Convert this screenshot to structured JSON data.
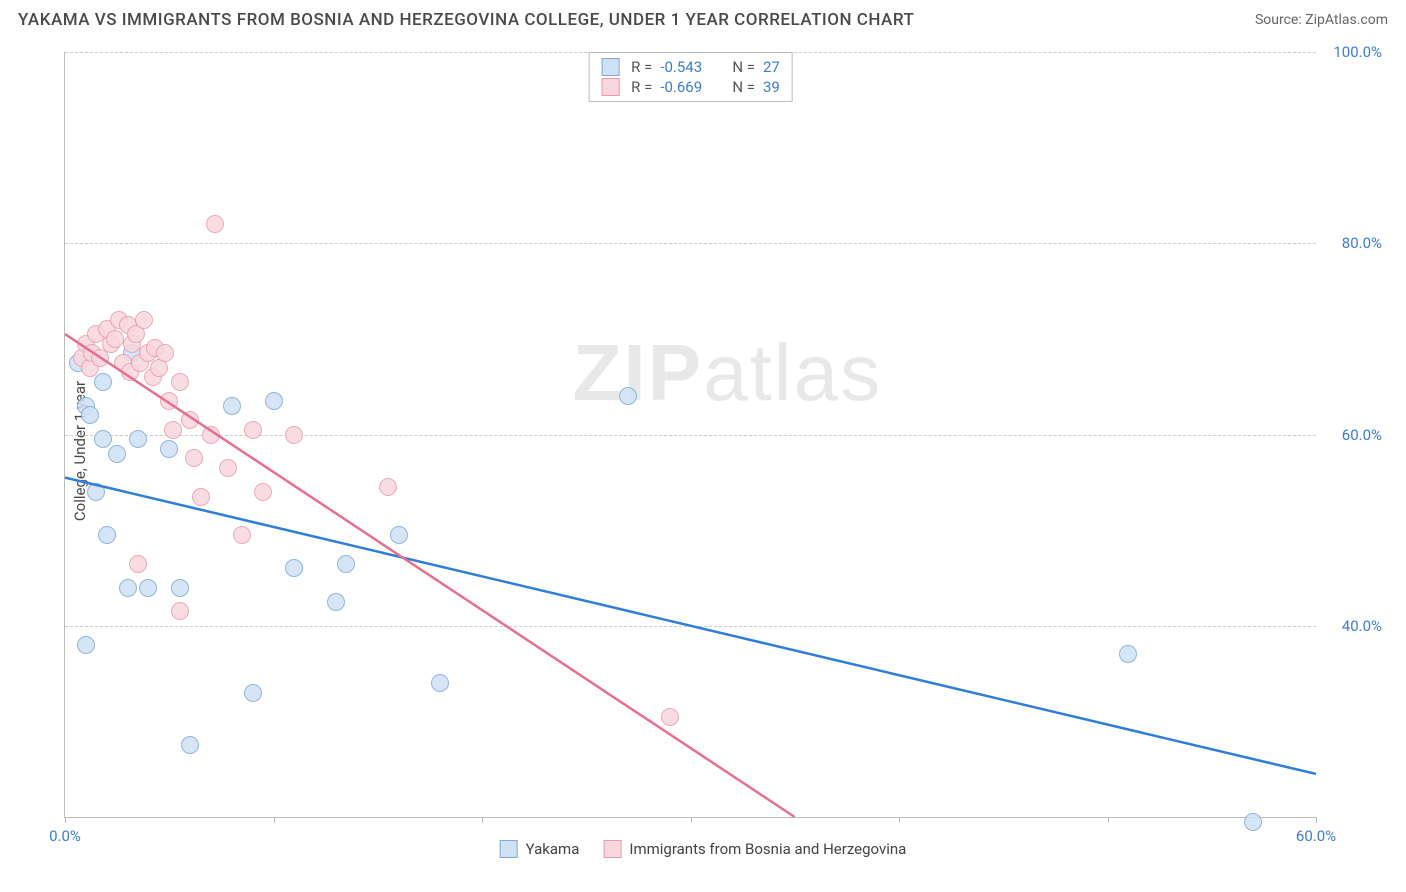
{
  "title": "YAKAMA VS IMMIGRANTS FROM BOSNIA AND HERZEGOVINA COLLEGE, UNDER 1 YEAR CORRELATION CHART",
  "source": "Source: ZipAtlas.com",
  "ylabel": "College, Under 1 year",
  "watermark": {
    "zip": "ZIP",
    "atlas": "atlas"
  },
  "chart": {
    "type": "scatter",
    "background_color": "#ffffff",
    "grid_color": "#cccccc",
    "axis_color": "#bbbbbb",
    "tick_label_color": "#3b7dd8",
    "xlim": [
      0,
      60
    ],
    "ylim": [
      20,
      100
    ],
    "x_ticks": [
      0,
      10,
      20,
      30,
      40,
      50,
      60
    ],
    "x_tick_labels": {
      "0": "0.0%",
      "60": "60.0%"
    },
    "y_gridlines": [
      40,
      60,
      80,
      100
    ],
    "y_tick_labels": {
      "40": "40.0%",
      "60": "60.0%",
      "80": "80.0%",
      "100": "100.0%"
    },
    "marker_radius": 9,
    "marker_stroke_width": 1,
    "series": [
      {
        "name": "Yakama",
        "fill": "#cfe1f5",
        "stroke": "#7fa9d8",
        "r_value": "-0.543",
        "n_value": "27",
        "trend": {
          "x1": 0,
          "y1": 55.5,
          "x2": 60,
          "y2": 24.5,
          "color": "#2f7ed8",
          "width": 2.5
        },
        "points": [
          [
            0.6,
            67.5
          ],
          [
            1.0,
            63.0
          ],
          [
            1.2,
            62.0
          ],
          [
            1.8,
            65.5
          ],
          [
            1.8,
            59.5
          ],
          [
            3.2,
            68.5
          ],
          [
            1.5,
            54.0
          ],
          [
            2.0,
            49.5
          ],
          [
            2.5,
            58.0
          ],
          [
            3.0,
            44.0
          ],
          [
            4.0,
            44.0
          ],
          [
            3.5,
            59.5
          ],
          [
            5.0,
            58.5
          ],
          [
            5.5,
            44.0
          ],
          [
            6.0,
            27.5
          ],
          [
            8.0,
            63.0
          ],
          [
            9.0,
            33.0
          ],
          [
            10.0,
            63.5
          ],
          [
            11.0,
            46.0
          ],
          [
            13.0,
            42.5
          ],
          [
            13.5,
            46.5
          ],
          [
            16.0,
            49.5
          ],
          [
            18.0,
            34.0
          ],
          [
            27.0,
            64.0
          ],
          [
            51.0,
            37.0
          ],
          [
            57.0,
            19.5
          ],
          [
            1.0,
            38.0
          ]
        ]
      },
      {
        "name": "Immigrants from Bosnia and Herzegovina",
        "fill": "#f9d6dd",
        "stroke": "#e99caf",
        "r_value": "-0.669",
        "n_value": "39",
        "trend": {
          "x1": 0,
          "y1": 70.5,
          "x2": 35,
          "y2": 20.0,
          "dash_x2": 60,
          "dash_y2": -16,
          "color": "#e76f8f",
          "width": 2.5
        },
        "points": [
          [
            0.8,
            68.0
          ],
          [
            1.0,
            69.5
          ],
          [
            1.2,
            67.0
          ],
          [
            1.3,
            68.5
          ],
          [
            1.5,
            70.5
          ],
          [
            1.7,
            68.0
          ],
          [
            2.0,
            71.0
          ],
          [
            2.2,
            69.5
          ],
          [
            2.4,
            70.0
          ],
          [
            2.6,
            72.0
          ],
          [
            2.8,
            67.5
          ],
          [
            3.0,
            71.5
          ],
          [
            3.1,
            66.5
          ],
          [
            3.2,
            69.5
          ],
          [
            3.4,
            70.5
          ],
          [
            3.6,
            67.5
          ],
          [
            3.8,
            72.0
          ],
          [
            4.0,
            68.5
          ],
          [
            4.2,
            66.0
          ],
          [
            4.3,
            69.0
          ],
          [
            4.5,
            67.0
          ],
          [
            4.8,
            68.5
          ],
          [
            5.0,
            63.5
          ],
          [
            5.2,
            60.5
          ],
          [
            5.5,
            65.5
          ],
          [
            6.0,
            61.5
          ],
          [
            6.2,
            57.5
          ],
          [
            6.5,
            53.5
          ],
          [
            7.0,
            60.0
          ],
          [
            7.2,
            82.0
          ],
          [
            7.8,
            56.5
          ],
          [
            8.5,
            49.5
          ],
          [
            9.0,
            60.5
          ],
          [
            9.5,
            54.0
          ],
          [
            11.0,
            60.0
          ],
          [
            3.5,
            46.5
          ],
          [
            5.5,
            41.5
          ],
          [
            15.5,
            54.5
          ],
          [
            29.0,
            30.5
          ]
        ]
      }
    ]
  }
}
